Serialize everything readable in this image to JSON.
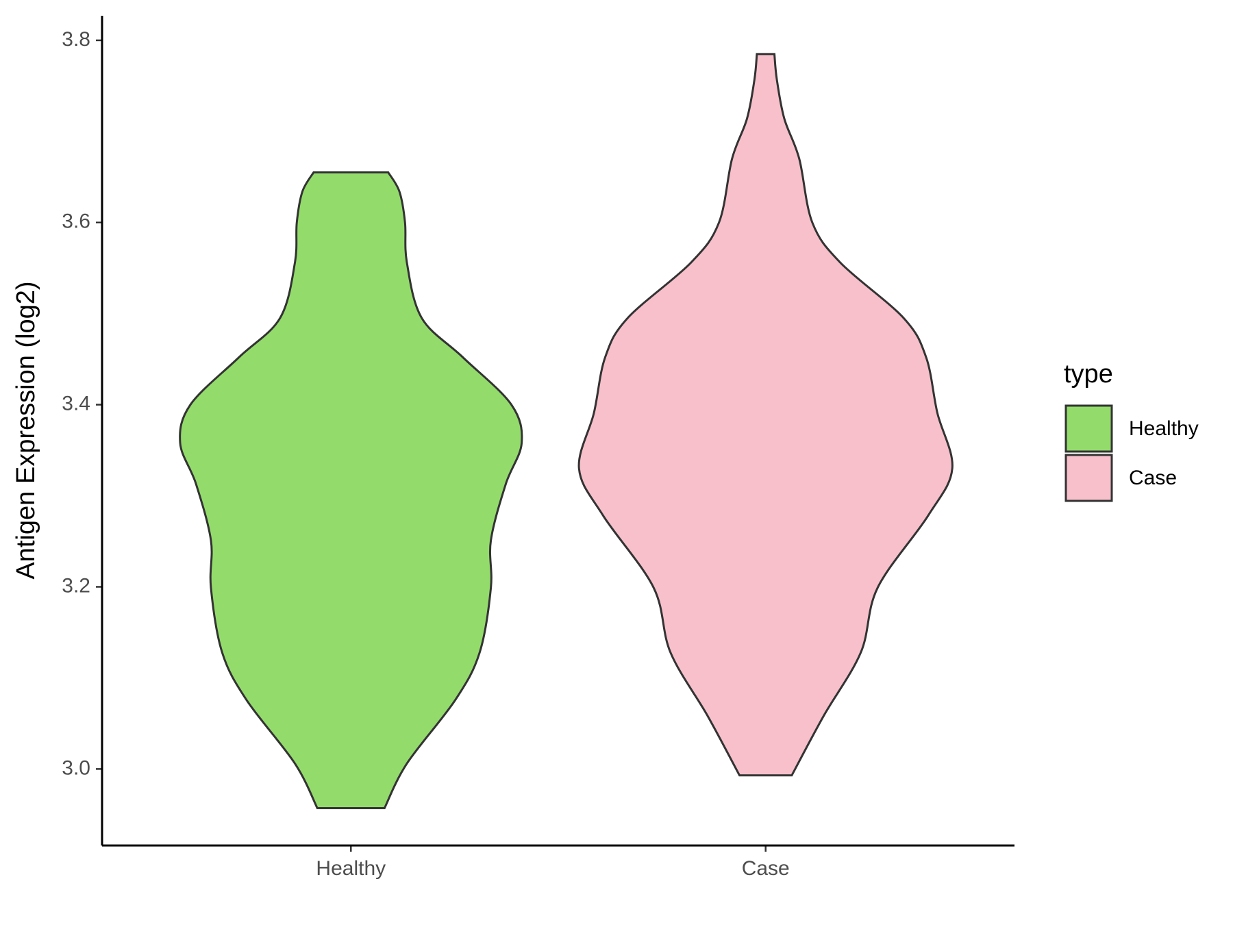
{
  "chart_data": {
    "type": "violin",
    "y_label": "Antigen Expression (log2)",
    "categories": [
      "Healthy",
      "Case"
    ],
    "legend_title": "type",
    "legend": "right",
    "ylim": [
      2.916,
      3.827
    ],
    "yticks": [
      {
        "value": 3.0,
        "label": "3.0"
      },
      {
        "value": 3.2,
        "label": "3.2"
      },
      {
        "value": 3.4,
        "label": "3.4"
      },
      {
        "value": 3.6,
        "label": "3.6"
      },
      {
        "value": 3.8,
        "label": "3.8"
      }
    ],
    "series": [
      {
        "name": "Healthy",
        "color": "#93dc6b",
        "y": [
          3.655,
          3.634,
          3.6,
          3.556,
          3.495,
          3.452,
          3.4,
          3.358,
          3.313,
          3.251,
          3.199,
          3.128,
          3.076,
          3.006,
          2.957
        ],
        "density": [
          0.2,
          0.26,
          0.29,
          0.3,
          0.38,
          0.6,
          0.86,
          0.915,
          0.83,
          0.75,
          0.75,
          0.69,
          0.56,
          0.3,
          0.18
        ]
      },
      {
        "name": "Case",
        "color": "#f7c0cb",
        "y": [
          3.785,
          3.757,
          3.714,
          3.67,
          3.6,
          3.556,
          3.495,
          3.452,
          3.391,
          3.33,
          3.278,
          3.199,
          3.128,
          3.058,
          2.993
        ],
        "density": [
          0.047,
          0.06,
          0.1,
          0.18,
          0.25,
          0.4,
          0.74,
          0.86,
          0.92,
          1.0,
          0.87,
          0.6,
          0.51,
          0.31,
          0.14
        ]
      }
    ]
  }
}
